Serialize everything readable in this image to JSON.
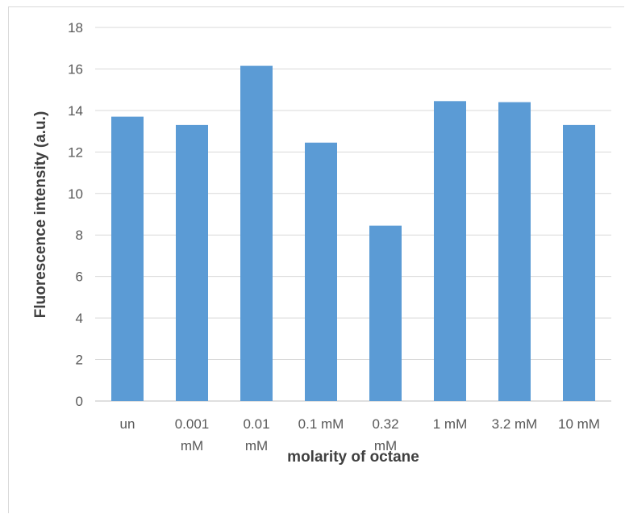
{
  "chart_data": {
    "type": "bar",
    "title": "",
    "xlabel": "molarity of octane",
    "ylabel": "Fluorescence intensity (a.u.)",
    "categories": [
      [
        "un"
      ],
      [
        "0.001",
        "mM"
      ],
      [
        "0.01",
        "mM"
      ],
      [
        "0.1 mM"
      ],
      [
        "0.32",
        "mM"
      ],
      [
        "1 mM"
      ],
      [
        "3.2 mM"
      ],
      [
        "10 mM"
      ]
    ],
    "values": [
      13.7,
      13.3,
      16.15,
      12.45,
      8.45,
      14.45,
      14.4,
      13.3
    ],
    "ylim": [
      0,
      18
    ],
    "yticks": [
      0,
      2,
      4,
      6,
      8,
      10,
      12,
      14,
      16,
      18
    ],
    "grid": true,
    "legend": "none",
    "colors": {
      "bar": "#5b9bd5",
      "grid": "#d9d9d9",
      "axis": "#bfbfbf"
    }
  }
}
